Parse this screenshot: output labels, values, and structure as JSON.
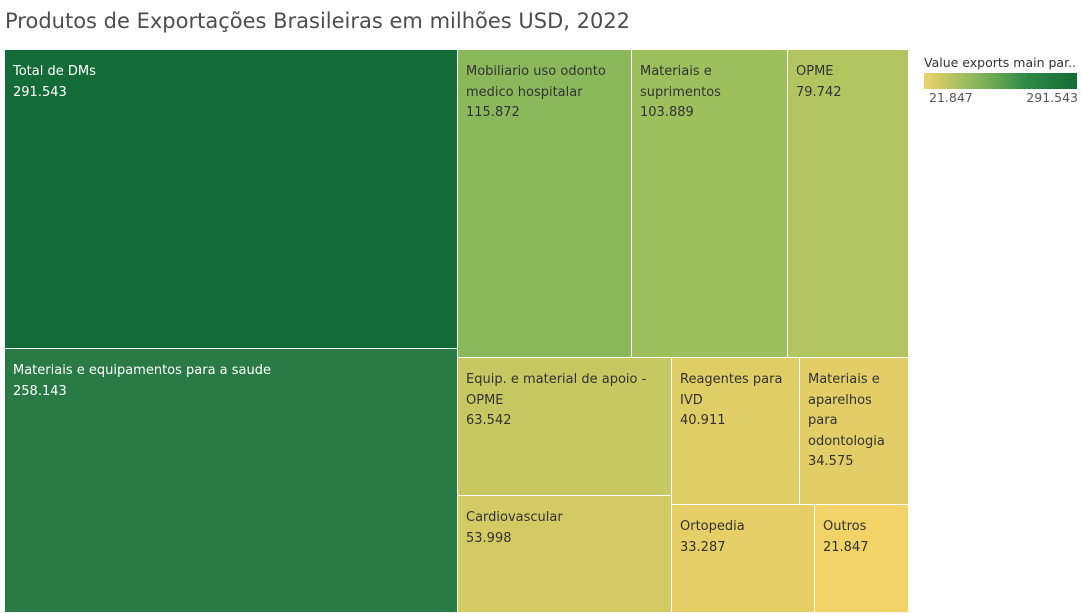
{
  "chart_data": {
    "type": "treemap",
    "title": "Produtos de Exportações Brasileiras em milhões USD, 2022",
    "legend": {
      "title": "Value exports main par..",
      "min": 21.847,
      "max": 291.543,
      "min_label": "21.847",
      "max_label": "291.543",
      "placement": "top-right",
      "colors": [
        "#ebd36b",
        "#8cb85c",
        "#2f8a46",
        "#136b37"
      ]
    },
    "items": [
      {
        "label": [
          "Total de DMs"
        ],
        "value": 291.543,
        "value_label": "291.543",
        "color": "#136b37",
        "text_color": "#ffffff"
      },
      {
        "label": [
          "Materiais e equipamentos para a saude"
        ],
        "value": 258.143,
        "value_label": "258.143",
        "color": "#297a44",
        "text_color": "#ffffff"
      },
      {
        "label": [
          "Mobiliario uso odonto",
          "medico hospitalar"
        ],
        "value": 115.872,
        "value_label": "115.872",
        "color": "#8cb85c",
        "text_color": "#333333"
      },
      {
        "label": [
          "Materiais e",
          "suprimentos"
        ],
        "value": 103.889,
        "value_label": "103.889",
        "color": "#9dbf5c",
        "text_color": "#333333"
      },
      {
        "label": [
          "OPME"
        ],
        "value": 79.742,
        "value_label": "79.742",
        "color": "#b3c560",
        "text_color": "#333333"
      },
      {
        "label": [
          "Equip. e material de apoio -",
          "OPME"
        ],
        "value": 63.542,
        "value_label": "63.542",
        "color": "#c8c862",
        "text_color": "#333333"
      },
      {
        "label": [
          "Cardiovascular"
        ],
        "value": 53.998,
        "value_label": "53.998",
        "color": "#d3ca64",
        "text_color": "#333333"
      },
      {
        "label": [
          "Reagentes para",
          "IVD"
        ],
        "value": 40.911,
        "value_label": "40.911",
        "color": "#dfcd66",
        "text_color": "#333333"
      },
      {
        "label": [
          "Materiais e",
          "aparelhos",
          "para",
          "odontologia"
        ],
        "value": 34.575,
        "value_label": "34.575",
        "color": "#e3cd66",
        "text_color": "#333333"
      },
      {
        "label": [
          "Ortopedia"
        ],
        "value": 33.287,
        "value_label": "33.287",
        "color": "#e6cf67",
        "text_color": "#333333"
      },
      {
        "label": [
          "Outros"
        ],
        "value": 21.847,
        "value_label": "21.847",
        "color": "#f2d368",
        "text_color": "#333333"
      }
    ]
  }
}
